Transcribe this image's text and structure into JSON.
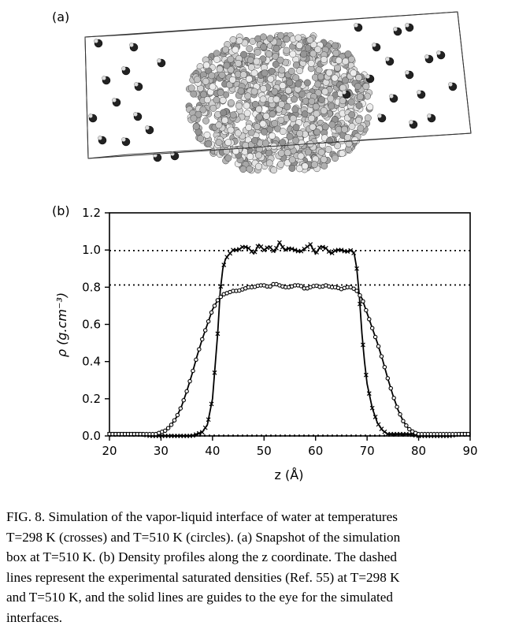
{
  "panel_a_label": "(a)",
  "panel_b_label": "(b)",
  "chart_data": {
    "type": "line",
    "title": "",
    "xlabel": "z (Å)",
    "ylabel": "ρ (g.cm⁻³)",
    "xlim": [
      20,
      90
    ],
    "ylim": [
      0.0,
      1.2
    ],
    "x_ticks": [
      "20",
      "30",
      "40",
      "50",
      "60",
      "70",
      "80",
      "90"
    ],
    "y_ticks": [
      "0.0",
      "0.2",
      "0.4",
      "0.6",
      "0.8",
      "1.0",
      "1.2"
    ],
    "reference_lines": [
      {
        "y": 0.997,
        "style": "dotted"
      },
      {
        "y": 0.812,
        "style": "dotted"
      },
      {
        "y": 0.0,
        "style": "dotted"
      },
      {
        "y": 0.003,
        "style": "dotted"
      }
    ],
    "series": [
      {
        "marker": "cross",
        "x": [
          20,
          22,
          24,
          26,
          28,
          30,
          32,
          34,
          36,
          37,
          38,
          39,
          40,
          41,
          41.5,
          42,
          42.5,
          43,
          44,
          45,
          46,
          47,
          48,
          49,
          50,
          51,
          52,
          53,
          54,
          55,
          56,
          57,
          58,
          59,
          60,
          61,
          62,
          63,
          64,
          65,
          66,
          67,
          67.5,
          68,
          68.5,
          69,
          69.5,
          70,
          71,
          72,
          73,
          74,
          76,
          78,
          80,
          82,
          84,
          86,
          88,
          90
        ],
        "y": [
          0.01,
          0.01,
          0.01,
          0.01,
          0.0,
          0.0,
          0.0,
          0.0,
          0.0,
          0.01,
          0.02,
          0.06,
          0.2,
          0.55,
          0.78,
          0.9,
          0.95,
          0.97,
          1.0,
          1.0,
          1.02,
          1.01,
          0.98,
          1.03,
          1.0,
          1.02,
          0.99,
          1.04,
          1.0,
          1.01,
          1.0,
          0.99,
          1.01,
          1.03,
          0.98,
          1.02,
          1.01,
          0.98,
          1.0,
          1.0,
          0.99,
          1.0,
          0.98,
          0.9,
          0.75,
          0.55,
          0.4,
          0.28,
          0.15,
          0.07,
          0.03,
          0.01,
          0.01,
          0.01,
          0.0,
          0.0,
          0.0,
          0.0,
          0.01,
          0.01
        ]
      },
      {
        "marker": "circle",
        "x": [
          20,
          22,
          24,
          26,
          28,
          29,
          30,
          31,
          32,
          33,
          34,
          35,
          36,
          37,
          38,
          39,
          40,
          41,
          42,
          43,
          44,
          45,
          46,
          47,
          48,
          49,
          50,
          51,
          52,
          53,
          54,
          55,
          56,
          57,
          58,
          59,
          60,
          61,
          62,
          63,
          64,
          65,
          66,
          67,
          68,
          69,
          70,
          71,
          72,
          73,
          74,
          75,
          76,
          77,
          78,
          79,
          80,
          82,
          84,
          86,
          88,
          90
        ],
        "y": [
          0.01,
          0.01,
          0.01,
          0.01,
          0.01,
          0.01,
          0.02,
          0.03,
          0.06,
          0.1,
          0.16,
          0.24,
          0.33,
          0.43,
          0.52,
          0.6,
          0.68,
          0.73,
          0.76,
          0.77,
          0.78,
          0.78,
          0.79,
          0.8,
          0.8,
          0.81,
          0.81,
          0.8,
          0.82,
          0.81,
          0.8,
          0.8,
          0.81,
          0.81,
          0.79,
          0.8,
          0.81,
          0.8,
          0.81,
          0.8,
          0.8,
          0.79,
          0.8,
          0.8,
          0.78,
          0.74,
          0.66,
          0.58,
          0.5,
          0.41,
          0.31,
          0.22,
          0.14,
          0.08,
          0.04,
          0.02,
          0.01,
          0.01,
          0.01,
          0.01,
          0.01,
          0.01
        ]
      }
    ]
  },
  "caption": {
    "line1": "FIG. 8. Simulation of the vapor-liquid interface of water at temperatures",
    "line2": "T=298 K (crosses) and T=510 K (circles). (a) Snapshot of the simulation",
    "line3": "box at T=510 K. (b) Density profiles along the z coordinate. The dashed",
    "line4": "lines represent the experimental saturated densities (Ref. 55) at T=298 K",
    "line5": "and T=510 K, and the solid lines are guides to the eye for the simulated",
    "line6": "interfaces."
  }
}
